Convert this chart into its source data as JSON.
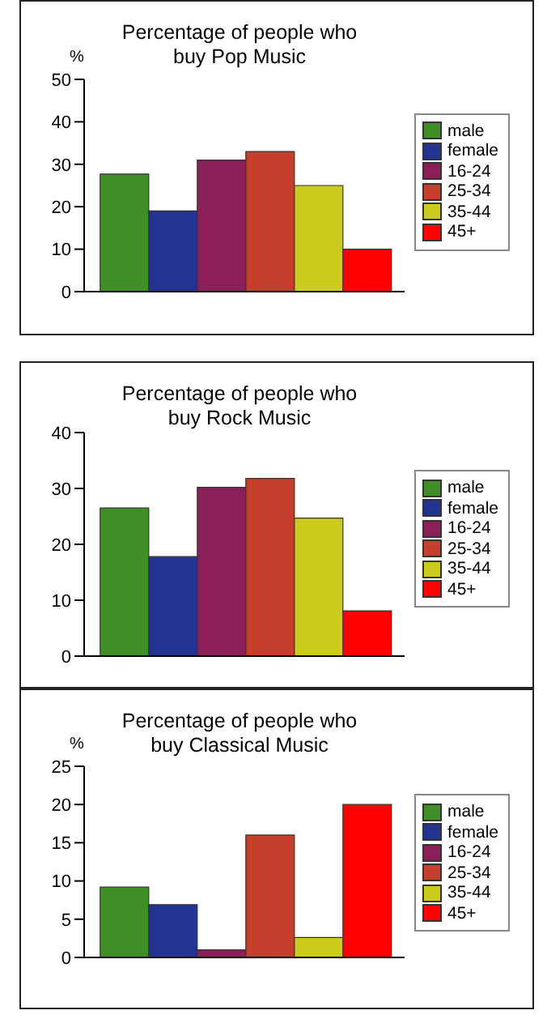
{
  "chart_data": [
    {
      "type": "bar",
      "title": "Percentage of people who buy Pop Music",
      "ylabel": "%",
      "categories": [
        null
      ],
      "ylim": [
        0,
        50
      ],
      "yticks": [
        0,
        10,
        20,
        30,
        40,
        50
      ],
      "legend": "right",
      "grid": false,
      "series": [
        {
          "name": "male",
          "color": "#3f8f26",
          "values": [
            27.7
          ]
        },
        {
          "name": "female",
          "color": "#233490",
          "values": [
            19
          ]
        },
        {
          "name": "16-24",
          "color": "#8b1f5a",
          "values": [
            31
          ]
        },
        {
          "name": "25-34",
          "color": "#c4402c",
          "values": [
            33
          ]
        },
        {
          "name": "35-44",
          "color": "#cccc1e",
          "values": [
            25
          ]
        },
        {
          "name": "45+",
          "color": "#ff0000",
          "values": [
            10
          ]
        }
      ]
    },
    {
      "type": "bar",
      "title": "Percentage of people who buy Rock Music",
      "categories": [
        null
      ],
      "ylim": [
        0,
        40
      ],
      "yticks": [
        0,
        10,
        20,
        30,
        40
      ],
      "legend": "right",
      "grid": false,
      "series": [
        {
          "name": "male",
          "color": "#3f8f26",
          "values": [
            26.5
          ]
        },
        {
          "name": "female",
          "color": "#233490",
          "values": [
            17.8
          ]
        },
        {
          "name": "16-24",
          "color": "#8b1f5a",
          "values": [
            30.2
          ]
        },
        {
          "name": "25-34",
          "color": "#c4402c",
          "values": [
            31.8
          ]
        },
        {
          "name": "35-44",
          "color": "#cccc1e",
          "values": [
            24.7
          ]
        },
        {
          "name": "45+",
          "color": "#ff0000",
          "values": [
            8.1
          ]
        }
      ]
    },
    {
      "type": "bar",
      "title": "Percentage of people who buy Classical Music",
      "ylabel": "%",
      "categories": [
        null
      ],
      "ylim": [
        0,
        25
      ],
      "yticks": [
        0,
        5,
        10,
        15,
        20,
        25
      ],
      "legend": "right",
      "grid": false,
      "series": [
        {
          "name": "male",
          "color": "#3f8f26",
          "values": [
            9.2
          ]
        },
        {
          "name": "female",
          "color": "#233490",
          "values": [
            6.9
          ]
        },
        {
          "name": "16-24",
          "color": "#8b1f5a",
          "values": [
            1
          ]
        },
        {
          "name": "25-34",
          "color": "#c4402c",
          "values": [
            16
          ]
        },
        {
          "name": "35-44",
          "color": "#cccc1e",
          "values": [
            2.6
          ]
        },
        {
          "name": "45+",
          "color": "#ff0000",
          "values": [
            20
          ]
        }
      ]
    }
  ]
}
